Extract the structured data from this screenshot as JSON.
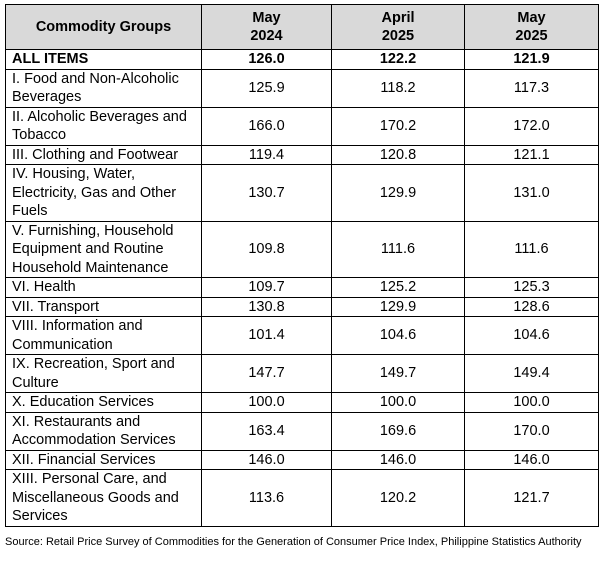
{
  "table": {
    "headers": {
      "group": "Commodity Groups",
      "col1_line1": "May",
      "col1_line2": "2024",
      "col2_line1": "April",
      "col2_line2": "2025",
      "col3_line1": "May",
      "col3_line2": "2025"
    },
    "rows": [
      {
        "group": "ALL ITEMS",
        "may2024": "126.0",
        "apr2025": "122.2",
        "may2025": "121.9"
      },
      {
        "group": "I. Food and Non-Alcoholic Beverages",
        "may2024": "125.9",
        "apr2025": "118.2",
        "may2025": "117.3"
      },
      {
        "group": "II. Alcoholic Beverages and Tobacco",
        "may2024": "166.0",
        "apr2025": "170.2",
        "may2025": "172.0"
      },
      {
        "group": "III. Clothing and Footwear",
        "may2024": "119.4",
        "apr2025": "120.8",
        "may2025": "121.1"
      },
      {
        "group": "IV. Housing, Water, Electricity, Gas and Other Fuels",
        "may2024": "130.7",
        "apr2025": "129.9",
        "may2025": "131.0"
      },
      {
        "group": "V. Furnishing, Household Equipment and Routine Household Maintenance",
        "may2024": "109.8",
        "apr2025": "111.6",
        "may2025": "111.6"
      },
      {
        "group": "VI. Health",
        "may2024": "109.7",
        "apr2025": "125.2",
        "may2025": "125.3"
      },
      {
        "group": "VII. Transport",
        "may2024": "130.8",
        "apr2025": "129.9",
        "may2025": "128.6"
      },
      {
        "group": "VIII. Information and Communication",
        "may2024": "101.4",
        "apr2025": "104.6",
        "may2025": "104.6"
      },
      {
        "group": "IX. Recreation, Sport and Culture",
        "may2024": "147.7",
        "apr2025": "149.7",
        "may2025": "149.4"
      },
      {
        "group": "X. Education Services",
        "may2024": "100.0",
        "apr2025": "100.0",
        "may2025": "100.0"
      },
      {
        "group": "XI. Restaurants and Accommodation Services",
        "may2024": "163.4",
        "apr2025": "169.6",
        "may2025": "170.0"
      },
      {
        "group": "XII. Financial Services",
        "may2024": "146.0",
        "apr2025": "146.0",
        "may2025": "146.0"
      },
      {
        "group": "XIII. Personal Care, and Miscellaneous Goods and Services",
        "may2024": "113.6",
        "apr2025": "120.2",
        "may2025": "121.7"
      }
    ]
  },
  "source_note": "Source: Retail Price Survey of Commodities for the Generation of Consumer Price Index, Philippine Statistics Authority",
  "colors": {
    "header_background": "#d9d9d9",
    "border": "#000000",
    "text": "#000000"
  }
}
